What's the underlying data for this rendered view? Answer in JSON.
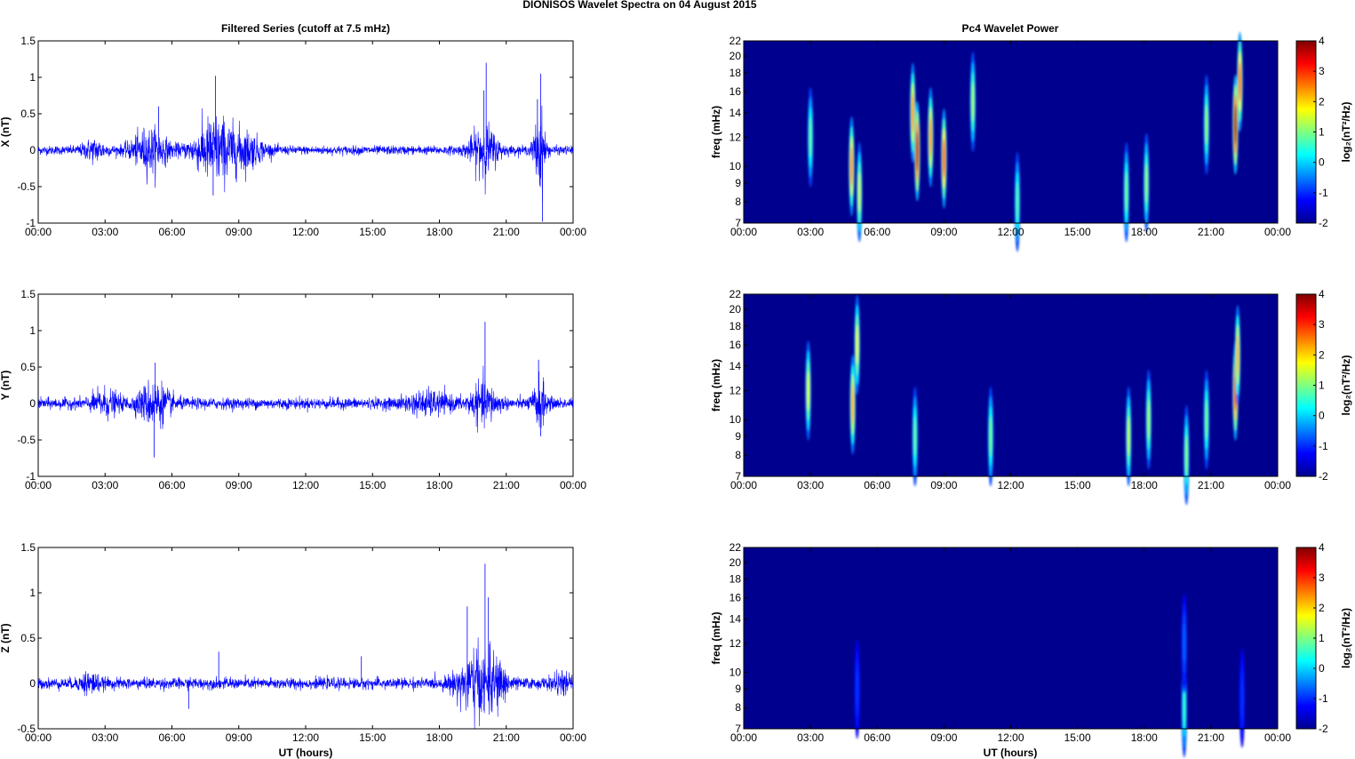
{
  "figure": {
    "title": "DIONISOS Wavelet Spectra on 04 August    2015",
    "left_title": "Filtered Series (cutoff at 7.5 mHz)",
    "right_title": "Pc4 Wavelet Power",
    "xlabel": "UT (hours)"
  },
  "colors": {
    "trace": "#0000ff",
    "spectrum_background": "#00008f"
  },
  "chart_data": [
    {
      "type": "line",
      "panel": "X",
      "ylabel": "X (nT)",
      "ylim": [
        -1,
        1.5
      ],
      "yticks": [
        "-1",
        "-0.5",
        "0",
        "0.5",
        "1",
        "1.5"
      ],
      "xticks": [
        "00:00",
        "03:00",
        "06:00",
        "09:00",
        "12:00",
        "15:00",
        "18:00",
        "21:00",
        "00:00"
      ],
      "xlim_hours": [
        0,
        24
      ],
      "base_noise": 0.04,
      "bursts": [
        {
          "t": 2.5,
          "w": 0.5,
          "a": 0.08
        },
        {
          "t": 5.0,
          "w": 0.8,
          "a": 0.18
        },
        {
          "t": 7.9,
          "w": 0.9,
          "a": 0.28
        },
        {
          "t": 9.3,
          "w": 0.8,
          "a": 0.14
        },
        {
          "t": 20.0,
          "w": 0.6,
          "a": 0.22
        },
        {
          "t": 22.5,
          "w": 0.25,
          "a": 0.35
        }
      ],
      "spikes": [
        {
          "t": 7.95,
          "y": 1.02
        },
        {
          "t": 7.85,
          "y": -0.62
        },
        {
          "t": 20.1,
          "y": 1.2
        },
        {
          "t": 20.0,
          "y": 0.82
        },
        {
          "t": 22.55,
          "y": 1.05
        },
        {
          "t": 22.62,
          "y": -0.98
        },
        {
          "t": 22.4,
          "y": 0.7
        },
        {
          "t": 5.4,
          "y": 0.6
        }
      ]
    },
    {
      "type": "line",
      "panel": "Y",
      "ylabel": "Y (nT)",
      "ylim": [
        -1,
        1.5
      ],
      "yticks": [
        "-1",
        "-0.5",
        "0",
        "0.5",
        "1",
        "1.5"
      ],
      "xticks": [
        "00:00",
        "03:00",
        "06:00",
        "09:00",
        "12:00",
        "15:00",
        "18:00",
        "21:00",
        "00:00"
      ],
      "xlim_hours": [
        0,
        24
      ],
      "base_noise": 0.05,
      "bursts": [
        {
          "t": 3.0,
          "w": 0.6,
          "a": 0.1
        },
        {
          "t": 5.2,
          "w": 0.7,
          "a": 0.18
        },
        {
          "t": 17.5,
          "w": 1.0,
          "a": 0.08
        },
        {
          "t": 20.0,
          "w": 0.6,
          "a": 0.16
        },
        {
          "t": 22.5,
          "w": 0.3,
          "a": 0.2
        }
      ],
      "spikes": [
        {
          "t": 5.25,
          "y": 0.56
        },
        {
          "t": 5.2,
          "y": -0.74
        },
        {
          "t": 20.05,
          "y": 1.12
        },
        {
          "t": 22.45,
          "y": 0.6
        },
        {
          "t": 22.55,
          "y": -0.45
        }
      ]
    },
    {
      "type": "line",
      "panel": "Z",
      "ylabel": "Z (nT)",
      "ylim": [
        -0.5,
        1.5
      ],
      "yticks": [
        "-0.5",
        "0",
        "0.5",
        "1",
        "1.5"
      ],
      "xticks": [
        "00:00",
        "03:00",
        "06:00",
        "09:00",
        "12:00",
        "15:00",
        "18:00",
        "21:00",
        "00:00"
      ],
      "xlim_hours": [
        0,
        24
      ],
      "base_noise": 0.04,
      "bursts": [
        {
          "t": 2.3,
          "w": 0.4,
          "a": 0.07
        },
        {
          "t": 19.6,
          "w": 0.8,
          "a": 0.22
        },
        {
          "t": 20.6,
          "w": 0.5,
          "a": 0.12
        },
        {
          "t": 23.5,
          "w": 0.5,
          "a": 0.05
        }
      ],
      "spikes": [
        {
          "t": 20.05,
          "y": 1.32
        },
        {
          "t": 19.25,
          "y": 0.85
        },
        {
          "t": 20.2,
          "y": 0.95
        },
        {
          "t": 20.0,
          "y": -0.3
        },
        {
          "t": 6.75,
          "y": -0.28
        },
        {
          "t": 8.1,
          "y": 0.35
        },
        {
          "t": 14.5,
          "y": 0.3
        }
      ]
    },
    {
      "type": "heatmap",
      "panel": "X",
      "ylabel": "freq (mHz)",
      "colorbar_label": "log₂(nT²/Hz)",
      "clim": [
        -2,
        4
      ],
      "colorbar_ticks": [
        "-2",
        "-1",
        "0",
        "1",
        "2",
        "3",
        "4"
      ],
      "yticks_mHz": [
        7,
        8,
        9,
        10,
        12,
        14,
        16,
        18,
        20,
        22
      ],
      "ytick_labels": [
        "7",
        "8",
        "9",
        "10",
        "12",
        "14",
        "16",
        "18",
        "20",
        "22"
      ],
      "xticks": [
        "00:00",
        "03:00",
        "06:00",
        "09:00",
        "12:00",
        "15:00",
        "18:00",
        "21:00",
        "00:00"
      ],
      "xlim_hours": [
        0,
        24
      ],
      "ylim_mHz": [
        7,
        22
      ],
      "features": [
        {
          "t": 3.0,
          "f": 12,
          "v": 0.5
        },
        {
          "t": 4.85,
          "f": 10,
          "v": 2.3
        },
        {
          "t": 5.2,
          "f": 8.5,
          "v": 1.2
        },
        {
          "t": 7.8,
          "f": 11,
          "v": 3.6
        },
        {
          "t": 7.6,
          "f": 14,
          "v": 2.2
        },
        {
          "t": 8.4,
          "f": 12,
          "v": 2.2
        },
        {
          "t": 9.0,
          "f": 10.5,
          "v": 2.8
        },
        {
          "t": 10.3,
          "f": 15,
          "v": 0.9
        },
        {
          "t": 12.3,
          "f": 8,
          "v": 0.4
        },
        {
          "t": 17.2,
          "f": 8.5,
          "v": 0.6
        },
        {
          "t": 18.1,
          "f": 9,
          "v": 0.8
        },
        {
          "t": 20.8,
          "f": 13,
          "v": 0.8
        },
        {
          "t": 22.1,
          "f": 13,
          "v": 3.8
        },
        {
          "t": 22.3,
          "f": 17,
          "v": 2.6
        }
      ]
    },
    {
      "type": "heatmap",
      "panel": "Y",
      "ylabel": "freq (mHz)",
      "colorbar_label": "log₂(nT²/Hz)",
      "clim": [
        -2,
        4
      ],
      "colorbar_ticks": [
        "-2",
        "-1",
        "0",
        "1",
        "2",
        "3",
        "4"
      ],
      "yticks_mHz": [
        7,
        8,
        9,
        10,
        12,
        14,
        16,
        18,
        20,
        22
      ],
      "ytick_labels": [
        "7",
        "8",
        "9",
        "10",
        "12",
        "14",
        "16",
        "18",
        "20",
        "22"
      ],
      "xticks": [
        "00:00",
        "03:00",
        "06:00",
        "09:00",
        "12:00",
        "15:00",
        "18:00",
        "21:00",
        "00:00"
      ],
      "xlim_hours": [
        0,
        24
      ],
      "ylim_mHz": [
        7,
        22
      ],
      "features": [
        {
          "t": 2.9,
          "f": 12,
          "v": 1.3
        },
        {
          "t": 4.9,
          "f": 11,
          "v": 2.0
        },
        {
          "t": 5.1,
          "f": 16,
          "v": 1.4
        },
        {
          "t": 7.7,
          "f": 9,
          "v": 0.5
        },
        {
          "t": 11.1,
          "f": 9,
          "v": 0.6
        },
        {
          "t": 17.3,
          "f": 9,
          "v": 1.1
        },
        {
          "t": 18.2,
          "f": 10,
          "v": 0.9
        },
        {
          "t": 19.9,
          "f": 8,
          "v": 0.7
        },
        {
          "t": 20.8,
          "f": 10,
          "v": 0.6
        },
        {
          "t": 22.1,
          "f": 12,
          "v": 3.2
        },
        {
          "t": 22.2,
          "f": 15,
          "v": 2.0
        }
      ]
    },
    {
      "type": "heatmap",
      "panel": "Z",
      "ylabel": "freq (mHz)",
      "colorbar_label": "log₂(nT²/Hz)",
      "clim": [
        -2,
        4
      ],
      "colorbar_ticks": [
        "-2",
        "-1",
        "0",
        "1",
        "2",
        "3",
        "4"
      ],
      "yticks_mHz": [
        7,
        8,
        9,
        10,
        12,
        14,
        16,
        18,
        20,
        22
      ],
      "ytick_labels": [
        "7",
        "8",
        "9",
        "10",
        "12",
        "14",
        "16",
        "18",
        "20",
        "22"
      ],
      "xticks": [
        "00:00",
        "03:00",
        "06:00",
        "09:00",
        "12:00",
        "15:00",
        "18:00",
        "21:00",
        "00:00"
      ],
      "xlim_hours": [
        0,
        24
      ],
      "ylim_mHz": [
        7,
        22
      ],
      "features": [
        {
          "t": 19.8,
          "f": 8,
          "v": 0.2
        },
        {
          "t": 19.8,
          "f": 12,
          "v": -1.2
        },
        {
          "t": 5.1,
          "f": 9,
          "v": -1.5
        },
        {
          "t": 22.4,
          "f": 8.5,
          "v": -1.5
        }
      ]
    }
  ]
}
